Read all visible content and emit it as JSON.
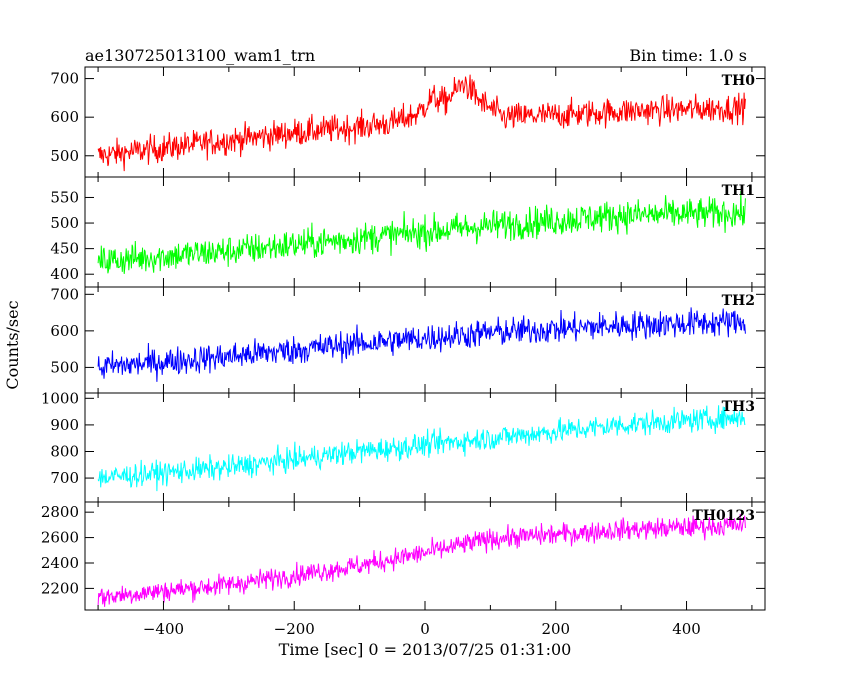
{
  "chart_data": {
    "type": "line",
    "title": "ae130725013100_wam1_trn",
    "subtitle": "Bin time: 1.0 s",
    "xlabel": "Time [sec] 0 = 2013/07/25 01:31:00",
    "ylabel": "Counts/sec",
    "xlim": [
      -520,
      520
    ],
    "x_ticks": [
      -400,
      -200,
      0,
      200,
      400
    ],
    "x_tick_labels": [
      "−400",
      "−200",
      "0",
      "200",
      "400"
    ],
    "x_range": [
      -500,
      490
    ],
    "panels": [
      {
        "label": "TH0",
        "color": "#ff0000",
        "ylim": [
          445,
          730
        ],
        "y_ticks": [
          500,
          600,
          700
        ],
        "noise": 26,
        "trend": [
          [
            -500,
            500
          ],
          [
            -400,
            520
          ],
          [
            -200,
            560
          ],
          [
            -100,
            575
          ],
          [
            -50,
            585
          ],
          [
            -10,
            610
          ],
          [
            10,
            650
          ],
          [
            30,
            640
          ],
          [
            60,
            690
          ],
          [
            85,
            640
          ],
          [
            120,
            600
          ],
          [
            200,
            605
          ],
          [
            300,
            615
          ],
          [
            400,
            620
          ],
          [
            490,
            625
          ]
        ]
      },
      {
        "label": "TH1",
        "color": "#00ff00",
        "ylim": [
          375,
          590
        ],
        "y_ticks": [
          400,
          450,
          500,
          550
        ],
        "noise": 22,
        "trend": [
          [
            -500,
            425
          ],
          [
            -300,
            445
          ],
          [
            -100,
            470
          ],
          [
            100,
            495
          ],
          [
            300,
            515
          ],
          [
            490,
            520
          ]
        ]
      },
      {
        "label": "TH2",
        "color": "#0000ff",
        "ylim": [
          430,
          720
        ],
        "y_ticks": [
          500,
          600,
          700
        ],
        "noise": 28,
        "trend": [
          [
            -500,
            500
          ],
          [
            -300,
            530
          ],
          [
            -100,
            565
          ],
          [
            100,
            595
          ],
          [
            300,
            615
          ],
          [
            490,
            625
          ]
        ]
      },
      {
        "label": "TH3",
        "color": "#00ffff",
        "ylim": [
          610,
          1020
        ],
        "y_ticks": [
          700,
          800,
          900,
          1000
        ],
        "noise": 32,
        "trend": [
          [
            -500,
            700
          ],
          [
            -300,
            740
          ],
          [
            -100,
            800
          ],
          [
            100,
            850
          ],
          [
            300,
            900
          ],
          [
            490,
            930
          ]
        ]
      },
      {
        "label": "TH0123",
        "color": "#ff00ff",
        "ylim": [
          2030,
          2880
        ],
        "y_ticks": [
          2200,
          2400,
          2600,
          2800
        ],
        "noise": 60,
        "trend": [
          [
            -500,
            2130
          ],
          [
            -300,
            2230
          ],
          [
            -100,
            2380
          ],
          [
            0,
            2480
          ],
          [
            100,
            2590
          ],
          [
            300,
            2660
          ],
          [
            490,
            2700
          ]
        ]
      }
    ]
  }
}
